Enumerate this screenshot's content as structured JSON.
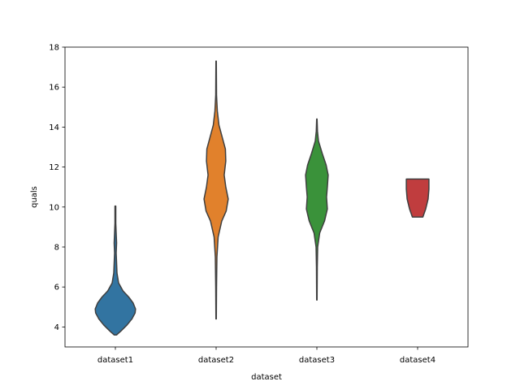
{
  "chart_data": {
    "type": "violin",
    "title": "",
    "xlabel": "dataset",
    "ylabel": "quals",
    "ylim": [
      3,
      18
    ],
    "yticks": [
      4,
      6,
      8,
      10,
      12,
      14,
      16,
      18
    ],
    "categories": [
      "dataset1",
      "dataset2",
      "dataset3",
      "dataset4"
    ],
    "grid": false,
    "outline_color": "#3f3f3f",
    "violins": [
      {
        "category": "dataset1",
        "color": "#3274a1",
        "profile": [
          [
            3.6,
            0.03
          ],
          [
            3.8,
            0.14
          ],
          [
            4.1,
            0.29
          ],
          [
            4.4,
            0.41
          ],
          [
            4.7,
            0.49
          ],
          [
            4.9,
            0.5
          ],
          [
            5.2,
            0.44
          ],
          [
            5.5,
            0.33
          ],
          [
            5.8,
            0.19
          ],
          [
            6.2,
            0.08
          ],
          [
            6.7,
            0.04
          ],
          [
            7.2,
            0.03
          ],
          [
            7.7,
            0.02
          ],
          [
            8.2,
            0.03
          ],
          [
            8.7,
            0.02
          ],
          [
            9.2,
            0.01
          ],
          [
            10.05,
            0.01
          ]
        ]
      },
      {
        "category": "dataset2",
        "color": "#e1812c",
        "profile": [
          [
            4.4,
            0.005
          ],
          [
            6.0,
            0.01
          ],
          [
            7.5,
            0.02
          ],
          [
            8.5,
            0.05
          ],
          [
            9.3,
            0.14
          ],
          [
            9.8,
            0.25
          ],
          [
            10.4,
            0.3
          ],
          [
            11.0,
            0.24
          ],
          [
            11.6,
            0.2
          ],
          [
            12.3,
            0.24
          ],
          [
            12.9,
            0.23
          ],
          [
            13.5,
            0.15
          ],
          [
            14.1,
            0.07
          ],
          [
            14.8,
            0.03
          ],
          [
            15.6,
            0.01
          ],
          [
            17.3,
            0.005
          ]
        ]
      },
      {
        "category": "dataset3",
        "color": "#3a923a",
        "profile": [
          [
            5.35,
            0.005
          ],
          [
            7.0,
            0.01
          ],
          [
            8.0,
            0.02
          ],
          [
            8.7,
            0.07
          ],
          [
            9.3,
            0.19
          ],
          [
            9.9,
            0.26
          ],
          [
            10.5,
            0.24
          ],
          [
            11.0,
            0.26
          ],
          [
            11.6,
            0.28
          ],
          [
            12.1,
            0.23
          ],
          [
            12.7,
            0.13
          ],
          [
            13.3,
            0.04
          ],
          [
            13.8,
            0.015
          ],
          [
            14.4,
            0.005
          ]
        ]
      },
      {
        "category": "dataset4",
        "color": "#c03d3e",
        "profile": [
          [
            9.5,
            0.13
          ],
          [
            9.9,
            0.2
          ],
          [
            10.4,
            0.26
          ],
          [
            10.9,
            0.28
          ],
          [
            11.4,
            0.28
          ]
        ]
      }
    ]
  }
}
